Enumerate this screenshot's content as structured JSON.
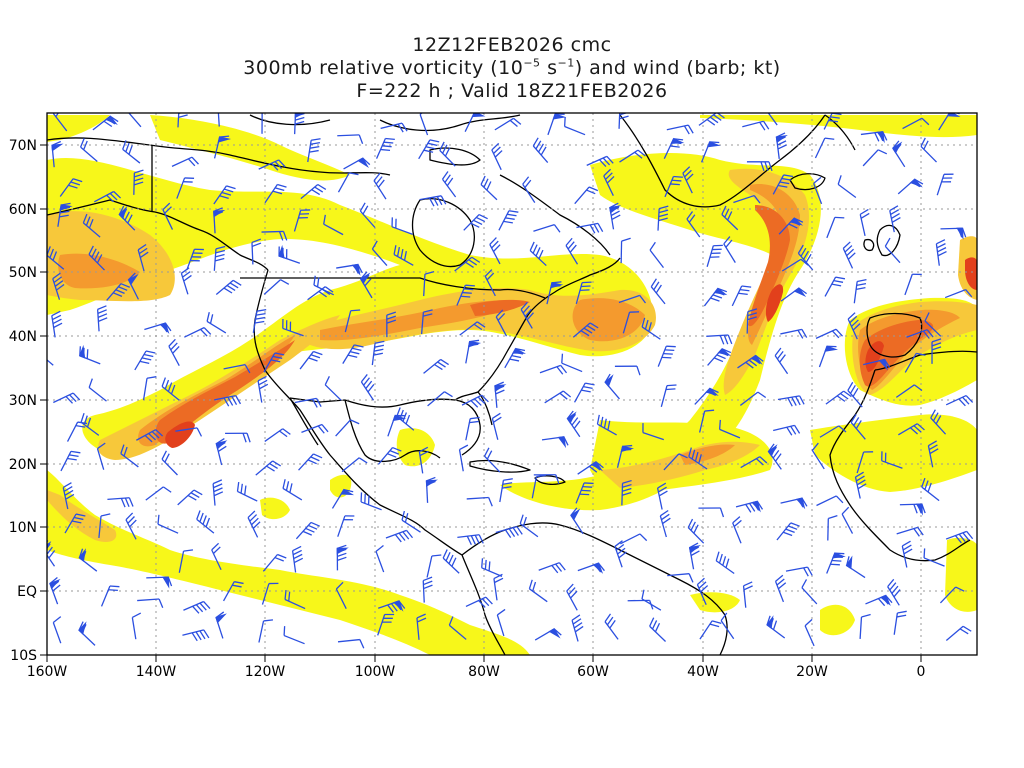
{
  "title": {
    "line1": "12Z12FEB2026 cmc",
    "line2_prefix": "300mb relative vorticity (10",
    "line2_exp1": "−5",
    "line2_mid": " s",
    "line2_exp2": "−1",
    "line2_suffix": ") and wind (barb; kt)",
    "line3": "F=222 h ; Valid 18Z21FEB2026"
  },
  "axes": {
    "lon_labels": [
      "160W",
      "140W",
      "120W",
      "100W",
      "80W",
      "60W",
      "40W",
      "20W",
      "0"
    ],
    "lat_labels": [
      "70N",
      "60N",
      "50N",
      "40N",
      "30N",
      "20N",
      "10N",
      "EQ",
      "10S"
    ],
    "lon_range": [
      -160,
      10
    ],
    "lat_range": [
      -10,
      75
    ]
  },
  "colors": {
    "shade_light": "#f7f71a",
    "shade_mid": "#f7c83a",
    "shade_orange": "#f49a2e",
    "shade_dark": "#ec6b24",
    "shade_red": "#e2401c",
    "barb": "#2b4fe0",
    "coast": "#000000",
    "grid": "#9a9a9a"
  }
}
